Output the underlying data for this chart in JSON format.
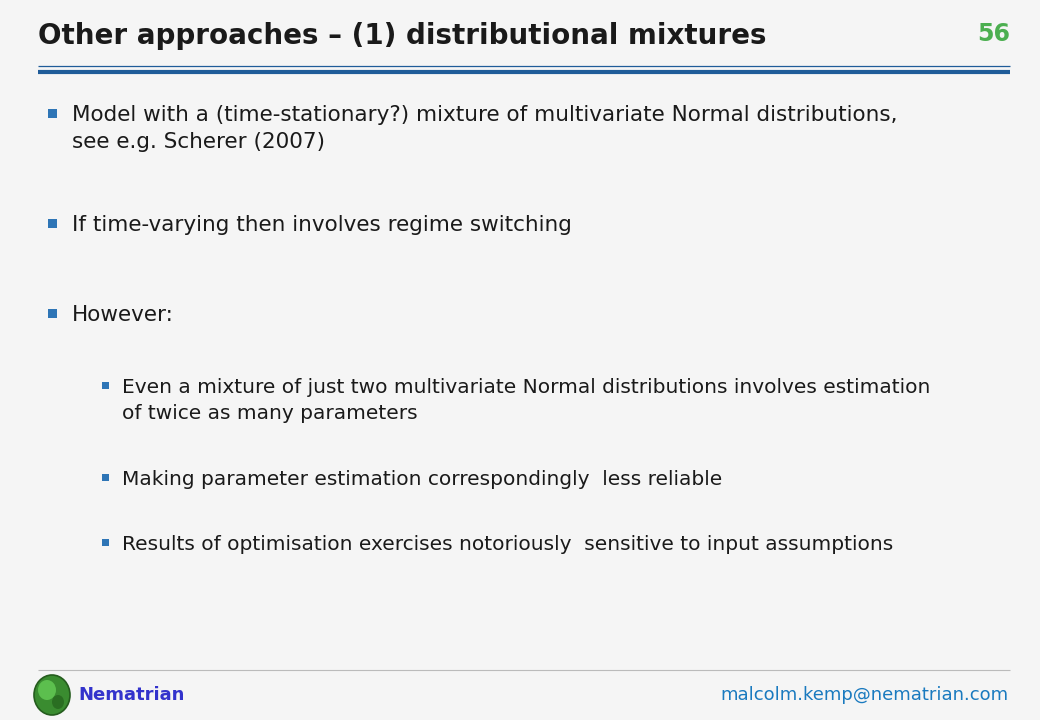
{
  "title": "Other approaches – (1) distributional mixtures",
  "slide_number": "56",
  "title_color": "#1a1a1a",
  "title_fontsize": 20,
  "slide_number_color": "#4CAF50",
  "header_line_color": "#1F5C99",
  "background_color": "#f5f5f5",
  "bullet_color": "#2E75B6",
  "sub_bullet_color": "#2E75B6",
  "text_color": "#1a1a1a",
  "text_fontsize": 15.5,
  "sub_text_fontsize": 14.5,
  "nematrian_color": "#3333cc",
  "email_color": "#1a7abf",
  "bullets": [
    {
      "level": 0,
      "text": "Model with a (time-stationary?) mixture of multivariate Normal distributions,\nsee e.g. Scherer (2007)"
    },
    {
      "level": 0,
      "text": "If time-varying then involves regime switching"
    },
    {
      "level": 0,
      "text": "However:"
    },
    {
      "level": 1,
      "text": "Even a mixture of just two multivariate Normal distributions involves estimation\nof twice as many parameters"
    },
    {
      "level": 1,
      "text": "Making parameter estimation correspondingly  less reliable"
    },
    {
      "level": 1,
      "text": "Results of optimisation exercises notoriously  sensitive to input assumptions"
    }
  ],
  "footer_text": "Nematrian",
  "footer_email": "malcolm.kemp@nematrian.com"
}
